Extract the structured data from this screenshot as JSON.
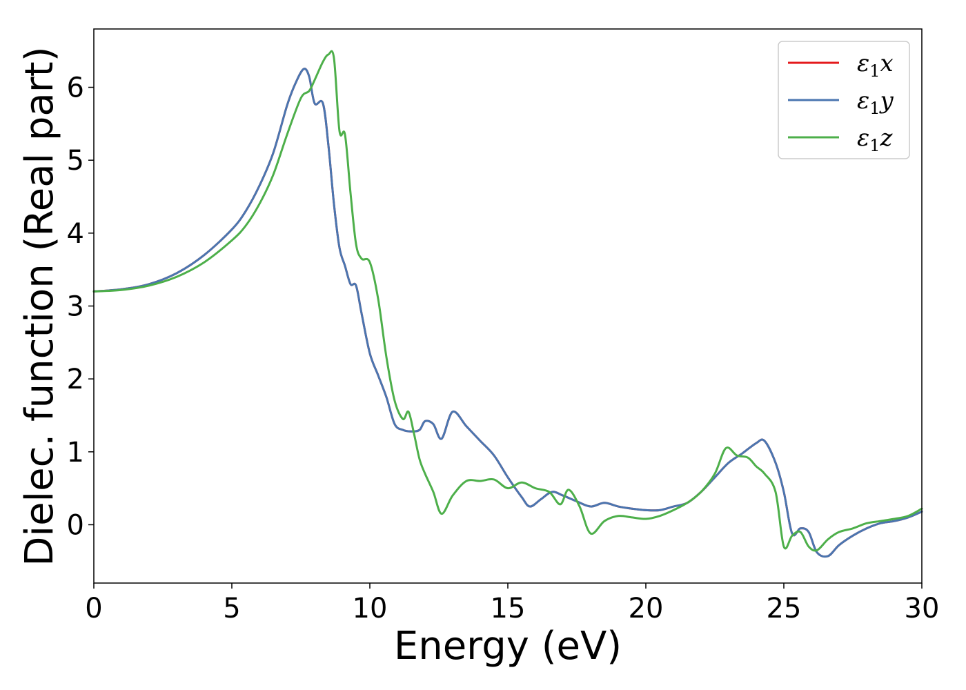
{
  "chart_data": {
    "type": "line",
    "xlabel": "Energy (eV)",
    "ylabel": "Dielec. function (Real part)",
    "xlim": [
      0,
      30
    ],
    "ylim": [
      -0.8,
      6.8
    ],
    "xticks": [
      0,
      5,
      10,
      15,
      20,
      25,
      30
    ],
    "yticks": [
      0,
      1,
      2,
      3,
      4,
      5,
      6
    ],
    "grid": false,
    "legend_position": "top-right",
    "series": [
      {
        "name": "ε₁x",
        "legend": {
          "base": "ε",
          "sub": "1",
          "var": "x"
        },
        "color": "#e41a1c",
        "x": [
          0,
          1,
          2,
          3,
          4,
          5,
          5.5,
          6,
          6.5,
          7,
          7.3,
          7.6,
          7.8,
          8.0,
          8.3,
          8.5,
          8.7,
          8.9,
          9.1,
          9.3,
          9.5,
          9.7,
          10.0,
          10.3,
          10.6,
          10.9,
          11.2,
          11.5,
          11.8,
          12.0,
          12.3,
          12.6,
          13.0,
          13.5,
          14.0,
          14.5,
          15.0,
          15.5,
          15.8,
          16.2,
          16.6,
          17.0,
          17.5,
          18.0,
          18.5,
          19.0,
          19.5,
          20.0,
          20.5,
          21.0,
          21.5,
          22.0,
          22.5,
          23.0,
          23.5,
          24.0,
          24.3,
          24.7,
          25.0,
          25.3,
          25.6,
          25.9,
          26.2,
          26.6,
          27.0,
          27.5,
          28.0,
          28.5,
          29.0,
          29.5,
          30.0
        ],
        "values": [
          3.2,
          3.23,
          3.3,
          3.45,
          3.7,
          4.05,
          4.3,
          4.65,
          5.1,
          5.75,
          6.05,
          6.25,
          6.15,
          5.78,
          5.78,
          5.2,
          4.4,
          3.8,
          3.55,
          3.3,
          3.28,
          2.9,
          2.35,
          2.05,
          1.75,
          1.38,
          1.3,
          1.28,
          1.3,
          1.42,
          1.38,
          1.18,
          1.55,
          1.35,
          1.15,
          0.95,
          0.65,
          0.38,
          0.25,
          0.35,
          0.45,
          0.4,
          0.32,
          0.25,
          0.3,
          0.25,
          0.22,
          0.2,
          0.2,
          0.25,
          0.3,
          0.45,
          0.65,
          0.85,
          0.98,
          1.12,
          1.15,
          0.85,
          0.45,
          -0.12,
          -0.05,
          -0.1,
          -0.38,
          -0.43,
          -0.28,
          -0.15,
          -0.05,
          0.02,
          0.05,
          0.1,
          0.18
        ]
      },
      {
        "name": "ε₁y",
        "legend": {
          "base": "ε",
          "sub": "1",
          "var": "y"
        },
        "color": "#4a76b0",
        "x": [
          0,
          1,
          2,
          3,
          4,
          5,
          5.5,
          6,
          6.5,
          7,
          7.3,
          7.6,
          7.8,
          8.0,
          8.3,
          8.5,
          8.7,
          8.9,
          9.1,
          9.3,
          9.5,
          9.7,
          10.0,
          10.3,
          10.6,
          10.9,
          11.2,
          11.5,
          11.8,
          12.0,
          12.3,
          12.6,
          13.0,
          13.5,
          14.0,
          14.5,
          15.0,
          15.5,
          15.8,
          16.2,
          16.6,
          17.0,
          17.5,
          18.0,
          18.5,
          19.0,
          19.5,
          20.0,
          20.5,
          21.0,
          21.5,
          22.0,
          22.5,
          23.0,
          23.5,
          24.0,
          24.3,
          24.7,
          25.0,
          25.3,
          25.6,
          25.9,
          26.2,
          26.6,
          27.0,
          27.5,
          28.0,
          28.5,
          29.0,
          29.5,
          30.0
        ],
        "values": [
          3.2,
          3.23,
          3.3,
          3.45,
          3.7,
          4.05,
          4.3,
          4.65,
          5.1,
          5.75,
          6.05,
          6.25,
          6.15,
          5.78,
          5.78,
          5.2,
          4.4,
          3.8,
          3.55,
          3.3,
          3.28,
          2.9,
          2.35,
          2.05,
          1.75,
          1.38,
          1.3,
          1.28,
          1.3,
          1.42,
          1.38,
          1.18,
          1.55,
          1.35,
          1.15,
          0.95,
          0.65,
          0.38,
          0.25,
          0.35,
          0.45,
          0.4,
          0.32,
          0.25,
          0.3,
          0.25,
          0.22,
          0.2,
          0.2,
          0.25,
          0.3,
          0.45,
          0.65,
          0.85,
          0.98,
          1.12,
          1.15,
          0.85,
          0.45,
          -0.12,
          -0.05,
          -0.1,
          -0.38,
          -0.43,
          -0.28,
          -0.15,
          -0.05,
          0.02,
          0.05,
          0.1,
          0.18
        ]
      },
      {
        "name": "ε₁z",
        "legend": {
          "base": "ε",
          "sub": "1",
          "var": "z"
        },
        "color": "#4daf4a",
        "x": [
          0,
          1,
          2,
          3,
          4,
          5,
          5.5,
          6,
          6.5,
          7,
          7.5,
          7.8,
          8.0,
          8.3,
          8.5,
          8.7,
          8.9,
          9.1,
          9.3,
          9.5,
          9.7,
          10.0,
          10.3,
          10.6,
          10.9,
          11.2,
          11.4,
          11.6,
          11.8,
          12.0,
          12.3,
          12.6,
          13.0,
          13.5,
          14.0,
          14.5,
          15.0,
          15.5,
          16.0,
          16.5,
          16.9,
          17.2,
          17.6,
          18.0,
          18.5,
          19.0,
          19.5,
          20.0,
          20.5,
          21.0,
          21.5,
          22.0,
          22.5,
          22.9,
          23.3,
          23.7,
          24.0,
          24.3,
          24.7,
          25.0,
          25.3,
          25.6,
          25.9,
          26.2,
          26.6,
          27.0,
          27.5,
          28.0,
          28.5,
          29.0,
          29.5,
          30.0
        ],
        "values": [
          3.2,
          3.22,
          3.28,
          3.4,
          3.6,
          3.9,
          4.1,
          4.4,
          4.8,
          5.35,
          5.85,
          5.95,
          6.1,
          6.35,
          6.45,
          6.4,
          5.4,
          5.35,
          4.55,
          3.85,
          3.65,
          3.6,
          3.1,
          2.3,
          1.7,
          1.45,
          1.55,
          1.25,
          0.9,
          0.7,
          0.45,
          0.15,
          0.4,
          0.6,
          0.6,
          0.62,
          0.5,
          0.58,
          0.5,
          0.45,
          0.28,
          0.48,
          0.25,
          -0.12,
          0.05,
          0.12,
          0.1,
          0.08,
          0.12,
          0.2,
          0.3,
          0.45,
          0.7,
          1.05,
          0.95,
          0.92,
          0.8,
          0.7,
          0.45,
          -0.3,
          -0.15,
          -0.1,
          -0.3,
          -0.35,
          -0.2,
          -0.1,
          -0.05,
          0.02,
          0.05,
          0.08,
          0.12,
          0.22
        ]
      }
    ]
  }
}
